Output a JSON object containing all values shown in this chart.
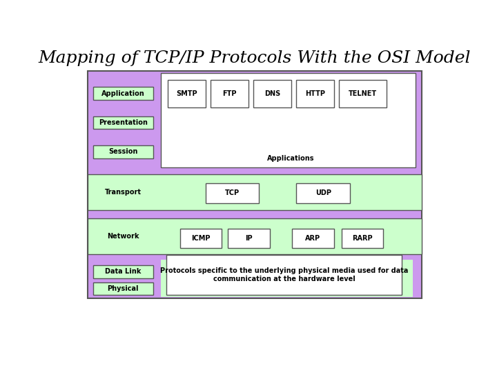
{
  "title": "Mapping of TCP/IP Protocols With the OSI Model",
  "title_fontsize": 18,
  "title_style": "italic",
  "title_font": "serif",
  "bg_color": "#ffffff",
  "outer_bg": "#cc99ee",
  "app_section_bg": "#ffffff",
  "green_bg": "#ccffcc",
  "label_box_bg": "#ccffcc",
  "proto_box_bg": "#ffffff",
  "app_protocols": [
    "SMTP",
    "FTP",
    "DNS",
    "HTTP",
    "TELNET"
  ],
  "app_label": "Applications",
  "datalink_text": "Protocols specific to the underlying physical media used for data\ncommunication at the hardware level",
  "label_fontsize": 7,
  "proto_fontsize": 7,
  "small_fontsize": 7
}
